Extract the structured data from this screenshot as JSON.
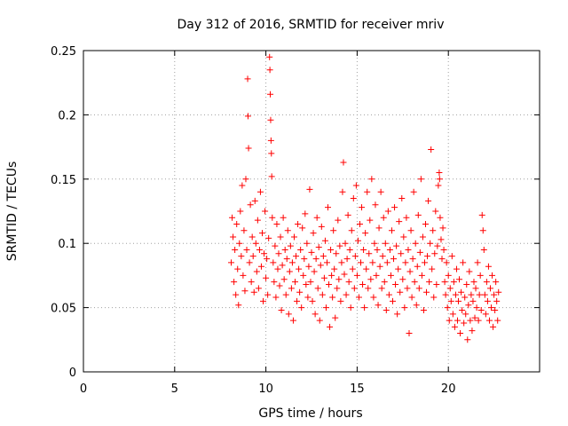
{
  "chart_data": {
    "type": "scatter",
    "title": "Day 312 of 2016, SRMTID for receiver mriv",
    "xlabel": "GPS time / hours",
    "ylabel": "SRMTID / TECUs",
    "xlim": [
      0,
      25
    ],
    "ylim": [
      0,
      0.25
    ],
    "x_ticks": [
      0,
      5,
      10,
      15,
      20
    ],
    "x_tick_labels": [
      "0",
      "5",
      "10",
      "15",
      "20"
    ],
    "y_ticks": [
      0,
      0.05,
      0.1,
      0.15,
      0.2,
      0.25
    ],
    "y_tick_labels": [
      "0",
      "0.05",
      "0.1",
      "0.15",
      "0.2",
      "0.25"
    ],
    "grid": true,
    "marker": "+",
    "color": "#ff0000",
    "points": [
      [
        8.1,
        0.085
      ],
      [
        8.15,
        0.12
      ],
      [
        8.2,
        0.105
      ],
      [
        8.25,
        0.07
      ],
      [
        8.3,
        0.095
      ],
      [
        8.35,
        0.06
      ],
      [
        8.4,
        0.115
      ],
      [
        8.45,
        0.08
      ],
      [
        8.5,
        0.052
      ],
      [
        8.55,
        0.1
      ],
      [
        8.6,
        0.125
      ],
      [
        8.65,
        0.09
      ],
      [
        8.7,
        0.145
      ],
      [
        8.75,
        0.075
      ],
      [
        8.8,
        0.11
      ],
      [
        8.85,
        0.063
      ],
      [
        8.9,
        0.15
      ],
      [
        8.95,
        0.095
      ],
      [
        9.0,
        0.228
      ],
      [
        9.02,
        0.199
      ],
      [
        9.05,
        0.174
      ],
      [
        9.1,
        0.085
      ],
      [
        9.15,
        0.13
      ],
      [
        9.2,
        0.07
      ],
      [
        9.25,
        0.105
      ],
      [
        9.3,
        0.09
      ],
      [
        9.35,
        0.062
      ],
      [
        9.4,
        0.133
      ],
      [
        9.45,
        0.1
      ],
      [
        9.5,
        0.078
      ],
      [
        9.55,
        0.118
      ],
      [
        9.6,
        0.065
      ],
      [
        9.65,
        0.095
      ],
      [
        9.7,
        0.14
      ],
      [
        9.75,
        0.082
      ],
      [
        9.8,
        0.108
      ],
      [
        9.85,
        0.055
      ],
      [
        9.9,
        0.092
      ],
      [
        9.95,
        0.125
      ],
      [
        10.0,
        0.073
      ],
      [
        10.05,
        0.088
      ],
      [
        10.1,
        0.06
      ],
      [
        10.15,
        0.104
      ],
      [
        10.2,
        0.245
      ],
      [
        10.22,
        0.235
      ],
      [
        10.24,
        0.216
      ],
      [
        10.26,
        0.196
      ],
      [
        10.28,
        0.18
      ],
      [
        10.3,
        0.17
      ],
      [
        10.32,
        0.152
      ],
      [
        10.35,
        0.12
      ],
      [
        10.4,
        0.085
      ],
      [
        10.45,
        0.07
      ],
      [
        10.5,
        0.098
      ],
      [
        10.55,
        0.058
      ],
      [
        10.6,
        0.115
      ],
      [
        10.65,
        0.08
      ],
      [
        10.7,
        0.092
      ],
      [
        10.75,
        0.067
      ],
      [
        10.8,
        0.105
      ],
      [
        10.85,
        0.048
      ],
      [
        10.9,
        0.083
      ],
      [
        10.95,
        0.12
      ],
      [
        11.0,
        0.072
      ],
      [
        11.05,
        0.095
      ],
      [
        11.1,
        0.06
      ],
      [
        11.15,
        0.088
      ],
      [
        11.2,
        0.11
      ],
      [
        11.25,
        0.045
      ],
      [
        11.3,
        0.078
      ],
      [
        11.35,
        0.098
      ],
      [
        11.4,
        0.065
      ],
      [
        11.45,
        0.085
      ],
      [
        11.5,
        0.04
      ],
      [
        11.55,
        0.105
      ],
      [
        11.6,
        0.07
      ],
      [
        11.65,
        0.09
      ],
      [
        11.7,
        0.055
      ],
      [
        11.75,
        0.115
      ],
      [
        11.8,
        0.08
      ],
      [
        11.85,
        0.062
      ],
      [
        11.9,
        0.095
      ],
      [
        11.95,
        0.05
      ],
      [
        12.0,
        0.112
      ],
      [
        12.05,
        0.075
      ],
      [
        12.1,
        0.088
      ],
      [
        12.15,
        0.123
      ],
      [
        12.2,
        0.068
      ],
      [
        12.25,
        0.1
      ],
      [
        12.3,
        0.058
      ],
      [
        12.35,
        0.082
      ],
      [
        12.4,
        0.142
      ],
      [
        12.45,
        0.07
      ],
      [
        12.5,
        0.093
      ],
      [
        12.55,
        0.055
      ],
      [
        12.6,
        0.108
      ],
      [
        12.65,
        0.078
      ],
      [
        12.7,
        0.045
      ],
      [
        12.75,
        0.088
      ],
      [
        12.8,
        0.12
      ],
      [
        12.85,
        0.065
      ],
      [
        12.9,
        0.097
      ],
      [
        12.95,
        0.04
      ],
      [
        13.0,
        0.083
      ],
      [
        13.05,
        0.113
      ],
      [
        13.1,
        0.06
      ],
      [
        13.15,
        0.09
      ],
      [
        13.2,
        0.073
      ],
      [
        13.25,
        0.102
      ],
      [
        13.3,
        0.05
      ],
      [
        13.35,
        0.085
      ],
      [
        13.4,
        0.128
      ],
      [
        13.45,
        0.068
      ],
      [
        13.5,
        0.035
      ],
      [
        13.55,
        0.095
      ],
      [
        13.6,
        0.075
      ],
      [
        13.65,
        0.058
      ],
      [
        13.7,
        0.11
      ],
      [
        13.75,
        0.08
      ],
      [
        13.8,
        0.042
      ],
      [
        13.85,
        0.092
      ],
      [
        13.9,
        0.065
      ],
      [
        13.95,
        0.118
      ],
      [
        14.0,
        0.072
      ],
      [
        14.05,
        0.098
      ],
      [
        14.1,
        0.055
      ],
      [
        14.15,
        0.085
      ],
      [
        14.2,
        0.14
      ],
      [
        14.25,
        0.163
      ],
      [
        14.3,
        0.076
      ],
      [
        14.35,
        0.1
      ],
      [
        14.4,
        0.06
      ],
      [
        14.45,
        0.088
      ],
      [
        14.5,
        0.122
      ],
      [
        14.55,
        0.07
      ],
      [
        14.6,
        0.095
      ],
      [
        14.65,
        0.05
      ],
      [
        14.7,
        0.11
      ],
      [
        14.75,
        0.08
      ],
      [
        14.8,
        0.135
      ],
      [
        14.85,
        0.065
      ],
      [
        14.9,
        0.09
      ],
      [
        14.95,
        0.145
      ],
      [
        15.0,
        0.075
      ],
      [
        15.05,
        0.102
      ],
      [
        15.1,
        0.058
      ],
      [
        15.15,
        0.115
      ],
      [
        15.2,
        0.085
      ],
      [
        15.25,
        0.128
      ],
      [
        15.3,
        0.068
      ],
      [
        15.35,
        0.095
      ],
      [
        15.4,
        0.05
      ],
      [
        15.45,
        0.108
      ],
      [
        15.5,
        0.08
      ],
      [
        15.55,
        0.14
      ],
      [
        15.6,
        0.065
      ],
      [
        15.65,
        0.092
      ],
      [
        15.7,
        0.118
      ],
      [
        15.75,
        0.072
      ],
      [
        15.8,
        0.15
      ],
      [
        15.85,
        0.085
      ],
      [
        15.9,
        0.058
      ],
      [
        15.95,
        0.1
      ],
      [
        16.0,
        0.13
      ],
      [
        16.05,
        0.075
      ],
      [
        16.1,
        0.095
      ],
      [
        16.15,
        0.052
      ],
      [
        16.2,
        0.112
      ],
      [
        16.25,
        0.082
      ],
      [
        16.3,
        0.14
      ],
      [
        16.35,
        0.065
      ],
      [
        16.4,
        0.09
      ],
      [
        16.45,
        0.12
      ],
      [
        16.5,
        0.07
      ],
      [
        16.55,
        0.1
      ],
      [
        16.6,
        0.048
      ],
      [
        16.65,
        0.085
      ],
      [
        16.7,
        0.125
      ],
      [
        16.75,
        0.06
      ],
      [
        16.8,
        0.095
      ],
      [
        16.85,
        0.075
      ],
      [
        16.9,
        0.11
      ],
      [
        16.95,
        0.055
      ],
      [
        17.0,
        0.088
      ],
      [
        17.05,
        0.128
      ],
      [
        17.1,
        0.068
      ],
      [
        17.15,
        0.098
      ],
      [
        17.2,
        0.045
      ],
      [
        17.25,
        0.08
      ],
      [
        17.3,
        0.117
      ],
      [
        17.35,
        0.062
      ],
      [
        17.4,
        0.092
      ],
      [
        17.45,
        0.135
      ],
      [
        17.5,
        0.072
      ],
      [
        17.55,
        0.105
      ],
      [
        17.6,
        0.05
      ],
      [
        17.65,
        0.085
      ],
      [
        17.7,
        0.12
      ],
      [
        17.75,
        0.065
      ],
      [
        17.8,
        0.095
      ],
      [
        17.85,
        0.03
      ],
      [
        17.9,
        0.078
      ],
      [
        17.95,
        0.11
      ],
      [
        18.0,
        0.058
      ],
      [
        18.05,
        0.088
      ],
      [
        18.1,
        0.14
      ],
      [
        18.15,
        0.07
      ],
      [
        18.2,
        0.1
      ],
      [
        18.25,
        0.052
      ],
      [
        18.3,
        0.082
      ],
      [
        18.35,
        0.122
      ],
      [
        18.4,
        0.065
      ],
      [
        18.45,
        0.093
      ],
      [
        18.5,
        0.15
      ],
      [
        18.55,
        0.075
      ],
      [
        18.6,
        0.105
      ],
      [
        18.65,
        0.048
      ],
      [
        18.7,
        0.085
      ],
      [
        18.75,
        0.115
      ],
      [
        18.8,
        0.062
      ],
      [
        18.85,
        0.09
      ],
      [
        18.9,
        0.133
      ],
      [
        18.95,
        0.07
      ],
      [
        19.0,
        0.1
      ],
      [
        19.05,
        0.173
      ],
      [
        19.1,
        0.08
      ],
      [
        19.15,
        0.11
      ],
      [
        19.2,
        0.058
      ],
      [
        19.25,
        0.092
      ],
      [
        19.3,
        0.125
      ],
      [
        19.35,
        0.068
      ],
      [
        19.4,
        0.098
      ],
      [
        19.45,
        0.145
      ],
      [
        19.5,
        0.155
      ],
      [
        19.52,
        0.15
      ],
      [
        19.55,
        0.12
      ],
      [
        19.6,
        0.103
      ],
      [
        19.65,
        0.088
      ],
      [
        19.7,
        0.112
      ],
      [
        19.75,
        0.095
      ],
      [
        19.8,
        0.07
      ],
      [
        19.85,
        0.06
      ],
      [
        19.9,
        0.085
      ],
      [
        19.95,
        0.05
      ],
      [
        20.0,
        0.075
      ],
      [
        20.05,
        0.04
      ],
      [
        20.1,
        0.065
      ],
      [
        20.15,
        0.055
      ],
      [
        20.2,
        0.09
      ],
      [
        20.25,
        0.045
      ],
      [
        20.3,
        0.07
      ],
      [
        20.35,
        0.035
      ],
      [
        20.4,
        0.06
      ],
      [
        20.45,
        0.08
      ],
      [
        20.5,
        0.04
      ],
      [
        20.55,
        0.055
      ],
      [
        20.6,
        0.072
      ],
      [
        20.65,
        0.03
      ],
      [
        20.7,
        0.062
      ],
      [
        20.75,
        0.048
      ],
      [
        20.8,
        0.085
      ],
      [
        20.85,
        0.038
      ],
      [
        20.9,
        0.058
      ],
      [
        20.95,
        0.045
      ],
      [
        21.0,
        0.068
      ],
      [
        21.05,
        0.025
      ],
      [
        21.1,
        0.052
      ],
      [
        21.15,
        0.078
      ],
      [
        21.2,
        0.04
      ],
      [
        21.25,
        0.06
      ],
      [
        21.3,
        0.032
      ],
      [
        21.35,
        0.055
      ],
      [
        21.4,
        0.07
      ],
      [
        21.45,
        0.042
      ],
      [
        21.5,
        0.065
      ],
      [
        21.55,
        0.05
      ],
      [
        21.6,
        0.085
      ],
      [
        21.65,
        0.04
      ],
      [
        21.7,
        0.06
      ],
      [
        21.75,
        0.075
      ],
      [
        21.8,
        0.048
      ],
      [
        21.85,
        0.122
      ],
      [
        21.9,
        0.11
      ],
      [
        21.95,
        0.095
      ],
      [
        22.0,
        0.06
      ],
      [
        22.05,
        0.045
      ],
      [
        22.1,
        0.07
      ],
      [
        22.15,
        0.055
      ],
      [
        22.2,
        0.082
      ],
      [
        22.25,
        0.04
      ],
      [
        22.3,
        0.065
      ],
      [
        22.35,
        0.05
      ],
      [
        22.4,
        0.075
      ],
      [
        22.45,
        0.035
      ],
      [
        22.5,
        0.06
      ],
      [
        22.55,
        0.048
      ],
      [
        22.6,
        0.07
      ],
      [
        22.65,
        0.055
      ],
      [
        22.7,
        0.04
      ],
      [
        22.75,
        0.062
      ]
    ]
  }
}
